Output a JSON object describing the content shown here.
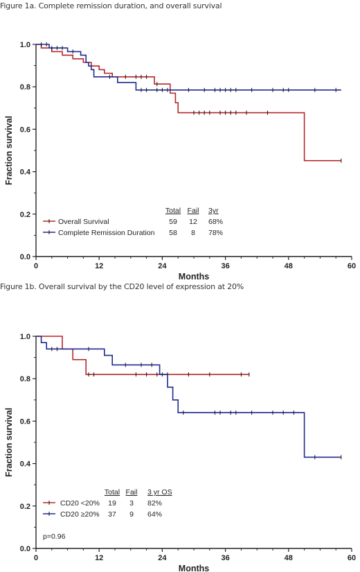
{
  "captions": {
    "fig1a": "Figure 1a. Complete remission duration, and overall survival",
    "fig1b": "Figure 1b. Overall survival by the CD20 level of expression at 20%"
  },
  "chart_data": [
    {
      "type": "line",
      "subtype": "kaplan-meier",
      "xlabel": "Months",
      "ylabel": "Fraction survival",
      "xlim": [
        0,
        60
      ],
      "ylim": [
        0,
        1.0
      ],
      "x_ticks": [
        0,
        12,
        24,
        36,
        48,
        60
      ],
      "y_ticks": [
        0.0,
        0.2,
        0.4,
        0.6,
        0.8,
        1.0
      ],
      "x_tick_labels": [
        "0",
        "12",
        "24",
        "36",
        "48",
        "60"
      ],
      "y_tick_labels": [
        "0.0",
        "0.2",
        "0.4",
        "0.6",
        "0.8",
        "1.0"
      ],
      "legend": {
        "position": "bottom-center",
        "headers": [
          "Total",
          "Fail",
          "3yr"
        ],
        "rows": [
          {
            "label": "Overall Survival",
            "values": [
              "59",
              "12",
              "68%"
            ]
          },
          {
            "label": "Complete Remission Duration",
            "values": [
              "58",
              "8",
              "78%"
            ]
          }
        ]
      },
      "series": [
        {
          "name": "Overall Survival",
          "color": "#b5262b",
          "steps": [
            [
              0,
              1.0
            ],
            [
              1,
              0.983
            ],
            [
              3,
              0.966
            ],
            [
              5,
              0.949
            ],
            [
              7,
              0.932
            ],
            [
              9,
              0.915
            ],
            [
              10.5,
              0.898
            ],
            [
              12,
              0.881
            ],
            [
              13,
              0.864
            ],
            [
              14.5,
              0.847
            ],
            [
              22.5,
              0.813
            ],
            [
              25.5,
              0.77
            ],
            [
              26.5,
              0.725
            ],
            [
              27,
              0.678
            ],
            [
              51,
              0.452
            ],
            [
              58,
              0.452
            ]
          ],
          "censored": [
            17,
            19,
            20,
            21,
            23,
            30,
            31,
            32,
            33,
            35,
            36,
            37,
            38,
            40,
            44,
            58
          ]
        },
        {
          "name": "Complete Remission Duration",
          "color": "#1f2a8f",
          "steps": [
            [
              0,
              1.0
            ],
            [
              2.5,
              0.983
            ],
            [
              6,
              0.966
            ],
            [
              8.5,
              0.949
            ],
            [
              9.5,
              0.915
            ],
            [
              10,
              0.898
            ],
            [
              10.5,
              0.881
            ],
            [
              11,
              0.847
            ],
            [
              15.5,
              0.82
            ],
            [
              19,
              0.785
            ],
            [
              26,
              0.785
            ],
            [
              58,
              0.785
            ]
          ],
          "censored": [
            1,
            2,
            3,
            4,
            5,
            7,
            14,
            20,
            21,
            23,
            24,
            25,
            29,
            32,
            34,
            35,
            36,
            37,
            38,
            41,
            45,
            47,
            48,
            53,
            57
          ]
        }
      ]
    },
    {
      "type": "line",
      "subtype": "kaplan-meier",
      "xlabel": "Months",
      "ylabel": "Fraction survival",
      "xlim": [
        0,
        60
      ],
      "ylim": [
        0,
        1.0
      ],
      "x_ticks": [
        0,
        12,
        24,
        36,
        48,
        60
      ],
      "y_ticks": [
        0.0,
        0.2,
        0.4,
        0.6,
        0.8,
        1.0
      ],
      "x_tick_labels": [
        "0",
        "12",
        "24",
        "36",
        "48",
        "60"
      ],
      "y_tick_labels": [
        "0.0",
        "0.2",
        "0.4",
        "0.6",
        "0.8",
        "1.0"
      ],
      "legend": {
        "position": "bottom-left",
        "headers": [
          "Total",
          "Fail",
          "3 yr OS"
        ],
        "rows": [
          {
            "label": "CD20 <20%",
            "values": [
              "19",
              "3",
              "82%"
            ]
          },
          {
            "label": "CD20 ≥20%",
            "values": [
              "37",
              "9",
              "64%"
            ]
          }
        ],
        "note": "p=0.96"
      },
      "series": [
        {
          "name": "CD20 <20%",
          "color": "#b5262b",
          "steps": [
            [
              0,
              1.0
            ],
            [
              5,
              0.94
            ],
            [
              7,
              0.89
            ],
            [
              9.5,
              0.82
            ],
            [
              40.5,
              0.82
            ]
          ],
          "censored": [
            10,
            11,
            19,
            21,
            23,
            24,
            25,
            29,
            33,
            39,
            40.5
          ]
        },
        {
          "name": "CD20 ≥20%",
          "color": "#1f2a8f",
          "steps": [
            [
              0,
              1.0
            ],
            [
              1,
              0.97
            ],
            [
              2,
              0.94
            ],
            [
              13,
              0.91
            ],
            [
              14.5,
              0.865
            ],
            [
              23.5,
              0.82
            ],
            [
              25,
              0.76
            ],
            [
              26,
              0.7
            ],
            [
              27,
              0.64
            ],
            [
              51,
              0.43
            ],
            [
              58,
              0.43
            ]
          ],
          "censored": [
            3,
            4,
            10,
            17,
            20,
            22,
            28,
            34,
            35,
            37,
            38,
            41,
            45,
            47,
            49,
            53,
            58
          ]
        }
      ]
    }
  ]
}
